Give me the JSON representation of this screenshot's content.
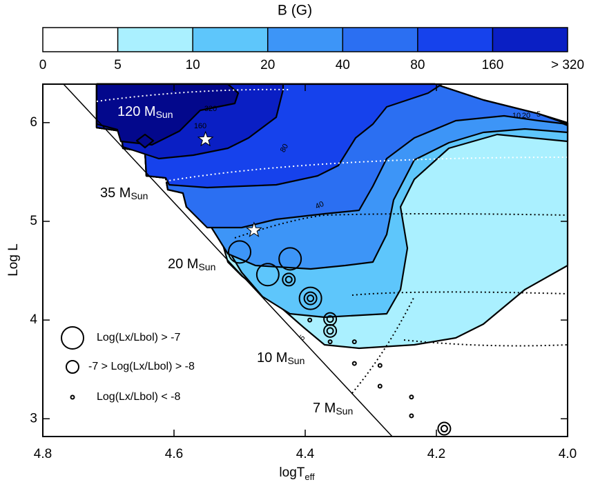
{
  "chart_data": {
    "type": "scatter",
    "colorbar": {
      "label": "B (G)",
      "ticks": [
        0,
        5,
        10,
        20,
        40,
        80,
        160,
        {
          "value": 320,
          "label": "> 320"
        }
      ],
      "colors": [
        "#ffffff",
        "#aaf0ff",
        "#5ec6fb",
        "#3d95f7",
        "#2b6ff2",
        "#1642ec",
        "#0a1fc4"
      ]
    },
    "xlabel": {
      "text": "logT",
      "sub": "eff"
    },
    "ylabel": "Log L",
    "xlim": [
      4.8,
      4.0
    ],
    "ylim": [
      2.82,
      6.39
    ],
    "xticks": [
      4.8,
      4.6,
      4.4,
      4.2,
      {
        "value": 4,
        "label": "4.0"
      }
    ],
    "yticks": [
      3,
      4,
      5,
      6
    ],
    "series": [
      {
        "name": "Log(Lx/Lbol) > -7",
        "color": "#000000",
        "x": [
          4.5,
          4.423,
          4.457,
          4.392
        ],
        "y": [
          4.69,
          4.62,
          4.46,
          4.22
        ]
      },
      {
        "name": "-7 > Log(Lx/Lbol) > -8",
        "color": "#000000",
        "x": [
          4.425,
          4.392,
          4.362,
          4.362,
          4.188
        ],
        "y": [
          4.41,
          4.22,
          4.01,
          3.89,
          2.9
        ]
      },
      {
        "name": "Log(Lx/Lbol) < -8",
        "color": "#000000",
        "x": [
          4.393,
          4.362,
          4.325,
          4.325,
          4.286,
          4.286,
          4.238,
          4.238
        ],
        "y": [
          4.0,
          3.78,
          3.78,
          3.56,
          3.54,
          3.33,
          3.22,
          3.03
        ]
      }
    ],
    "stars": {
      "x": [
        4.552,
        4.478
      ],
      "y": [
        5.83,
        4.91
      ]
    },
    "annotations": [
      {
        "text": "120 M",
        "sub": "Sun"
      },
      {
        "text": "35 M",
        "sub": "Sun"
      },
      {
        "text": "20 M",
        "sub": "Sun"
      },
      {
        "text": "10 M",
        "sub": "Sun"
      },
      {
        "text": "7 M",
        "sub": "Sun"
      }
    ],
    "contour_labels": [
      "320",
      "160",
      "80",
      "40",
      "10",
      "20",
      "5",
      "5"
    ]
  }
}
